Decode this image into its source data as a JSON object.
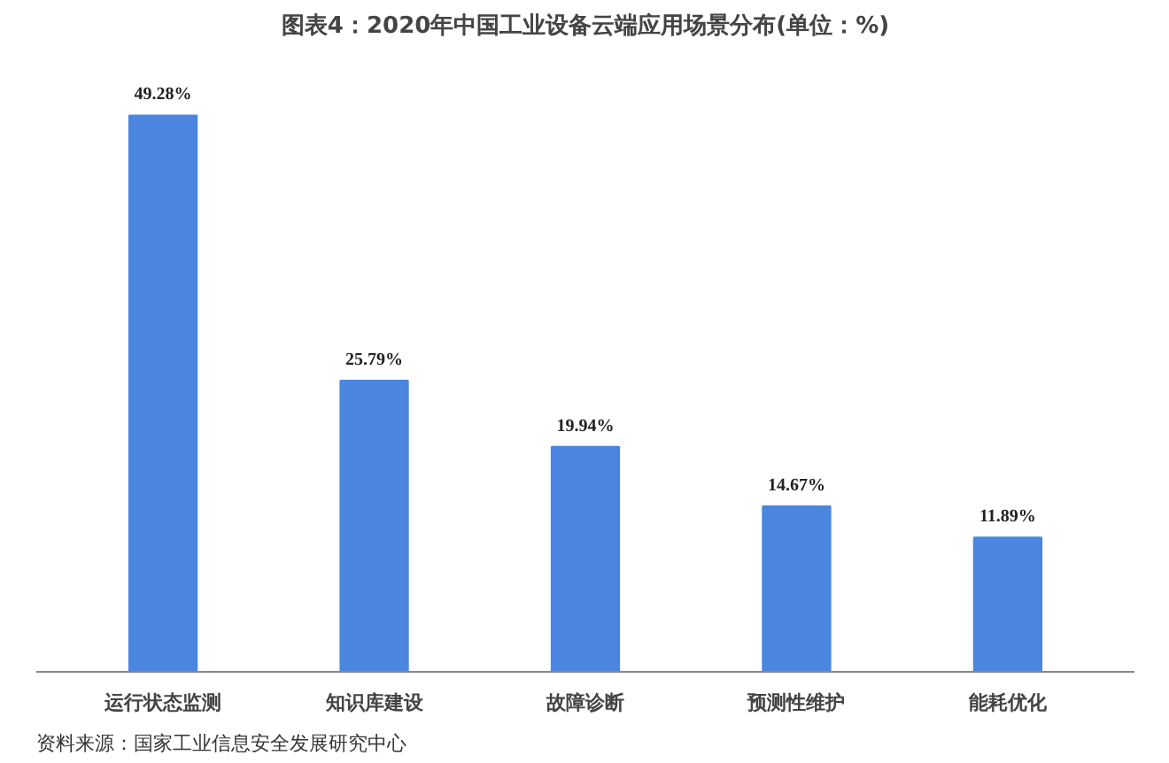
{
  "chart_data": {
    "type": "bar",
    "title": "图表4：2020年中国工业设备云端应用场景分布(单位：%)",
    "categories": [
      "运行状态监测",
      "知识库建设",
      "故障诊断",
      "预测性维护",
      "能耗优化"
    ],
    "values": [
      49.28,
      25.79,
      19.94,
      14.67,
      11.89
    ],
    "value_labels": [
      "49.28%",
      "25.79%",
      "19.94%",
      "14.67%",
      "11.89%"
    ],
    "color": "#4a86e0",
    "grid": false,
    "annotations": [
      "资料来源：国家工业信息安全发展研究中心"
    ]
  }
}
